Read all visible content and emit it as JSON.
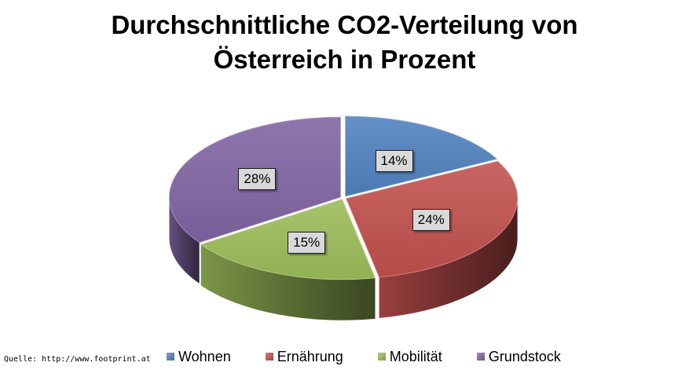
{
  "chart_data": {
    "type": "pie",
    "title_lines": [
      "Durchschnittliche CO2-Verteilung von",
      "Österreich in Prozent"
    ],
    "categories": [
      "Wohnen",
      "Ernährung",
      "Mobilität",
      "Grundstock"
    ],
    "values": [
      14,
      24,
      15,
      28
    ],
    "labels": [
      "14%",
      "24%",
      "15%",
      "28%"
    ],
    "colors": [
      "#4f81bd",
      "#c0504d",
      "#9bbb59",
      "#8064a2"
    ],
    "legend_position": "bottom",
    "style": "3d-exploded"
  },
  "source_note": "Quelle: http://www.footprint.at"
}
